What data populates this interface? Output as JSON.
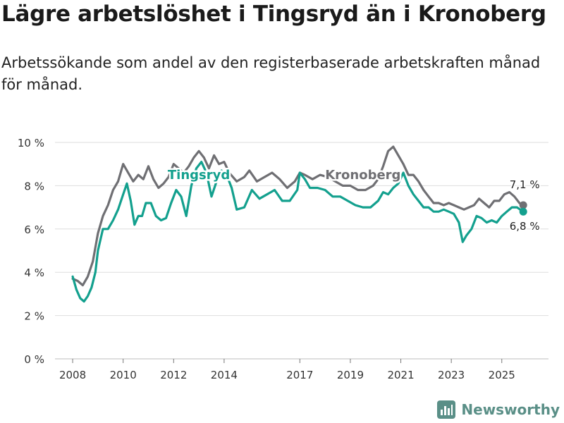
{
  "title": "Lägre arbetslöshet i Tingsryd än i Kronoberg",
  "subtitle": "Arbetssökande som andel av den registerbaserade arbetskraften månad för månad.",
  "brand": {
    "name": "Newsworthy",
    "icon": "bar-chart-logo-icon"
  },
  "chart_data": {
    "type": "line",
    "title": "",
    "xlabel": "",
    "ylabel": "",
    "ylim": [
      0,
      10
    ],
    "xlim": [
      2007.3,
      2026.85
    ],
    "yticks": [
      0,
      2,
      4,
      6,
      8,
      10
    ],
    "ytick_labels": [
      "0 %",
      "2 %",
      "4 %",
      "6 %",
      "8 %",
      "10 %"
    ],
    "xticks": [
      2008,
      2010,
      2012,
      2014,
      2017,
      2019,
      2021,
      2023,
      2025
    ],
    "xtick_labels": [
      "2008",
      "2010",
      "2012",
      "2014",
      "2017",
      "2019",
      "2021",
      "2023",
      "2025"
    ],
    "grid": true,
    "series": [
      {
        "name": "Kronoberg",
        "color": "#6f6f73",
        "end_label": "7,1 %",
        "points": [
          [
            2008.0,
            3.7
          ],
          [
            2008.2,
            3.6
          ],
          [
            2008.4,
            3.4
          ],
          [
            2008.6,
            3.8
          ],
          [
            2008.8,
            4.5
          ],
          [
            2009.0,
            5.8
          ],
          [
            2009.2,
            6.6
          ],
          [
            2009.4,
            7.1
          ],
          [
            2009.6,
            7.8
          ],
          [
            2009.8,
            8.2
          ],
          [
            2010.0,
            9.0
          ],
          [
            2010.2,
            8.6
          ],
          [
            2010.4,
            8.2
          ],
          [
            2010.6,
            8.5
          ],
          [
            2010.8,
            8.3
          ],
          [
            2011.0,
            8.9
          ],
          [
            2011.2,
            8.3
          ],
          [
            2011.4,
            7.9
          ],
          [
            2011.6,
            8.1
          ],
          [
            2011.8,
            8.4
          ],
          [
            2012.0,
            9.0
          ],
          [
            2012.2,
            8.8
          ],
          [
            2012.4,
            8.6
          ],
          [
            2012.6,
            8.9
          ],
          [
            2012.8,
            9.3
          ],
          [
            2013.0,
            9.6
          ],
          [
            2013.2,
            9.3
          ],
          [
            2013.4,
            8.8
          ],
          [
            2013.6,
            9.4
          ],
          [
            2013.8,
            9.0
          ],
          [
            2014.0,
            9.1
          ],
          [
            2014.2,
            8.6
          ],
          [
            2014.5,
            8.2
          ],
          [
            2014.8,
            8.4
          ],
          [
            2015.0,
            8.7
          ],
          [
            2015.3,
            8.2
          ],
          [
            2015.6,
            8.4
          ],
          [
            2015.9,
            8.6
          ],
          [
            2016.2,
            8.3
          ],
          [
            2016.5,
            7.9
          ],
          [
            2016.8,
            8.2
          ],
          [
            2017.0,
            8.6
          ],
          [
            2017.2,
            8.5
          ],
          [
            2017.5,
            8.3
          ],
          [
            2017.8,
            8.5
          ],
          [
            2018.1,
            8.4
          ],
          [
            2018.4,
            8.2
          ],
          [
            2018.7,
            8.0
          ],
          [
            2019.0,
            8.0
          ],
          [
            2019.3,
            7.8
          ],
          [
            2019.6,
            7.8
          ],
          [
            2019.9,
            8.0
          ],
          [
            2020.1,
            8.3
          ],
          [
            2020.3,
            8.9
          ],
          [
            2020.5,
            9.6
          ],
          [
            2020.7,
            9.8
          ],
          [
            2020.9,
            9.4
          ],
          [
            2021.1,
            9.0
          ],
          [
            2021.3,
            8.5
          ],
          [
            2021.5,
            8.5
          ],
          [
            2021.7,
            8.2
          ],
          [
            2021.9,
            7.8
          ],
          [
            2022.1,
            7.5
          ],
          [
            2022.3,
            7.2
          ],
          [
            2022.5,
            7.2
          ],
          [
            2022.7,
            7.1
          ],
          [
            2022.9,
            7.2
          ],
          [
            2023.1,
            7.1
          ],
          [
            2023.3,
            7.0
          ],
          [
            2023.5,
            6.9
          ],
          [
            2023.7,
            7.0
          ],
          [
            2023.9,
            7.1
          ],
          [
            2024.1,
            7.4
          ],
          [
            2024.3,
            7.2
          ],
          [
            2024.5,
            7.0
          ],
          [
            2024.7,
            7.3
          ],
          [
            2024.9,
            7.3
          ],
          [
            2025.1,
            7.6
          ],
          [
            2025.3,
            7.7
          ],
          [
            2025.5,
            7.5
          ],
          [
            2025.7,
            7.2
          ],
          [
            2025.85,
            7.1
          ]
        ]
      },
      {
        "name": "Tingsryd",
        "color": "#13a08e",
        "end_label": "6,8 %",
        "points": [
          [
            2008.0,
            3.8
          ],
          [
            2008.15,
            3.2
          ],
          [
            2008.3,
            2.8
          ],
          [
            2008.45,
            2.65
          ],
          [
            2008.6,
            2.9
          ],
          [
            2008.75,
            3.3
          ],
          [
            2008.9,
            4.0
          ],
          [
            2009.0,
            5.0
          ],
          [
            2009.2,
            6.0
          ],
          [
            2009.4,
            6.0
          ],
          [
            2009.6,
            6.4
          ],
          [
            2009.8,
            6.9
          ],
          [
            2010.0,
            7.6
          ],
          [
            2010.15,
            8.1
          ],
          [
            2010.3,
            7.3
          ],
          [
            2010.45,
            6.2
          ],
          [
            2010.6,
            6.6
          ],
          [
            2010.75,
            6.6
          ],
          [
            2010.9,
            7.2
          ],
          [
            2011.1,
            7.2
          ],
          [
            2011.3,
            6.6
          ],
          [
            2011.5,
            6.4
          ],
          [
            2011.7,
            6.5
          ],
          [
            2011.9,
            7.2
          ],
          [
            2012.1,
            7.8
          ],
          [
            2012.3,
            7.5
          ],
          [
            2012.5,
            6.6
          ],
          [
            2012.7,
            8.0
          ],
          [
            2012.9,
            8.8
          ],
          [
            2013.1,
            9.1
          ],
          [
            2013.3,
            8.6
          ],
          [
            2013.5,
            7.5
          ],
          [
            2013.7,
            8.2
          ],
          [
            2013.9,
            8.7
          ],
          [
            2014.1,
            8.5
          ],
          [
            2014.3,
            7.9
          ],
          [
            2014.5,
            6.9
          ],
          [
            2014.8,
            7.0
          ],
          [
            2015.1,
            7.8
          ],
          [
            2015.4,
            7.4
          ],
          [
            2015.7,
            7.6
          ],
          [
            2016.0,
            7.8
          ],
          [
            2016.3,
            7.3
          ],
          [
            2016.6,
            7.3
          ],
          [
            2016.9,
            7.8
          ],
          [
            2017.0,
            8.6
          ],
          [
            2017.2,
            8.3
          ],
          [
            2017.4,
            7.9
          ],
          [
            2017.7,
            7.9
          ],
          [
            2018.0,
            7.8
          ],
          [
            2018.3,
            7.5
          ],
          [
            2018.6,
            7.5
          ],
          [
            2018.9,
            7.3
          ],
          [
            2019.2,
            7.1
          ],
          [
            2019.5,
            7.0
          ],
          [
            2019.8,
            7.0
          ],
          [
            2020.1,
            7.3
          ],
          [
            2020.3,
            7.7
          ],
          [
            2020.5,
            7.6
          ],
          [
            2020.7,
            7.9
          ],
          [
            2020.9,
            8.1
          ],
          [
            2021.1,
            8.6
          ],
          [
            2021.3,
            8.0
          ],
          [
            2021.5,
            7.6
          ],
          [
            2021.7,
            7.3
          ],
          [
            2021.9,
            7.0
          ],
          [
            2022.1,
            7.0
          ],
          [
            2022.3,
            6.8
          ],
          [
            2022.5,
            6.8
          ],
          [
            2022.7,
            6.9
          ],
          [
            2022.9,
            6.8
          ],
          [
            2023.1,
            6.7
          ],
          [
            2023.3,
            6.3
          ],
          [
            2023.45,
            5.4
          ],
          [
            2023.6,
            5.7
          ],
          [
            2023.8,
            6.0
          ],
          [
            2024.0,
            6.6
          ],
          [
            2024.2,
            6.5
          ],
          [
            2024.4,
            6.3
          ],
          [
            2024.6,
            6.4
          ],
          [
            2024.8,
            6.3
          ],
          [
            2025.0,
            6.6
          ],
          [
            2025.2,
            6.8
          ],
          [
            2025.4,
            7.0
          ],
          [
            2025.6,
            7.0
          ],
          [
            2025.85,
            6.8
          ]
        ]
      }
    ],
    "annotations": [
      {
        "text": "Tingsryd",
        "series": "Tingsryd",
        "x": 2013.0,
        "y": 8.5
      },
      {
        "text": "Kronoberg",
        "series": "Kronoberg",
        "x": 2019.5,
        "y": 8.5
      }
    ]
  }
}
